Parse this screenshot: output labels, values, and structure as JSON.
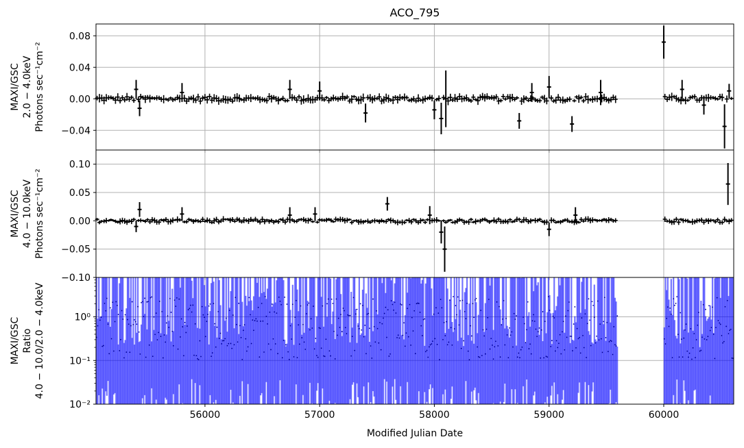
{
  "figure": {
    "title": "ACO_795",
    "xlabel": "Modified Julian Date"
  },
  "colors": {
    "axis": "#000000",
    "grid": "#b0b0b0",
    "point": "#000000",
    "ratio": "#0000ff",
    "ratio_point": "#00008b"
  },
  "chart_data": [
    {
      "type": "scatter",
      "panel": "top",
      "ylabel_lines": [
        "MAXI/GSC",
        "2.0 − 4.0keV",
        "Photons sec⁻¹cm⁻²"
      ],
      "xlim": [
        55050,
        60610
      ],
      "ylim": [
        -0.065,
        0.095
      ],
      "xticks": [
        56000,
        57000,
        58000,
        59000,
        60000
      ],
      "xtick_labels": [
        "56000",
        "57000",
        "58000",
        "59000",
        "60000"
      ],
      "yticks": [
        -0.04,
        0.0,
        0.04,
        0.08
      ],
      "ytick_labels": [
        "−0.04",
        "0.00",
        "0.04",
        "0.08"
      ],
      "grid": true,
      "segments": [
        [
          55050,
          59600
        ],
        [
          60000,
          60610
        ]
      ],
      "step": 20,
      "noise": 0.003,
      "base_err": 0.0045,
      "spikes": [
        {
          "x": 55400,
          "y": 0.012,
          "err": 0.012
        },
        {
          "x": 55430,
          "y": -0.012,
          "err": 0.01
        },
        {
          "x": 55800,
          "y": 0.008,
          "err": 0.012
        },
        {
          "x": 56740,
          "y": 0.012,
          "err": 0.012
        },
        {
          "x": 57000,
          "y": 0.01,
          "err": 0.012
        },
        {
          "x": 57400,
          "y": -0.018,
          "err": 0.012
        },
        {
          "x": 58000,
          "y": -0.014,
          "err": 0.012
        },
        {
          "x": 58060,
          "y": -0.025,
          "err": 0.02
        },
        {
          "x": 58100,
          "y": 0.0,
          "err": 0.036
        },
        {
          "x": 58740,
          "y": -0.028,
          "err": 0.01
        },
        {
          "x": 58850,
          "y": 0.008,
          "err": 0.012
        },
        {
          "x": 59000,
          "y": 0.015,
          "err": 0.014
        },
        {
          "x": 59200,
          "y": -0.032,
          "err": 0.01
        },
        {
          "x": 59450,
          "y": 0.008,
          "err": 0.016
        },
        {
          "x": 60000,
          "y": 0.072,
          "err": 0.021
        },
        {
          "x": 60160,
          "y": 0.012,
          "err": 0.012
        },
        {
          "x": 60350,
          "y": -0.008,
          "err": 0.012
        },
        {
          "x": 60530,
          "y": -0.035,
          "err": 0.028
        },
        {
          "x": 60570,
          "y": 0.01,
          "err": 0.009
        }
      ]
    },
    {
      "type": "scatter",
      "panel": "middle",
      "ylabel_lines": [
        "MAXI/GSC",
        "4.0 − 10.0keV",
        "Photons sec⁻¹cm⁻²"
      ],
      "xlim": [
        55050,
        60610
      ],
      "ylim": [
        -0.1,
        0.125
      ],
      "xticks": [
        56000,
        57000,
        58000,
        59000,
        60000
      ],
      "xtick_labels": [
        "56000",
        "57000",
        "58000",
        "59000",
        "60000"
      ],
      "yticks": [
        -0.1,
        -0.05,
        0.0,
        0.05,
        0.1
      ],
      "ytick_labels": [
        "−0.10",
        "−0.05",
        "0.00",
        "0.05",
        "0.10"
      ],
      "grid": true,
      "segments": [
        [
          55050,
          59600
        ],
        [
          60000,
          60610
        ]
      ],
      "step": 20,
      "noise": 0.003,
      "base_err": 0.0045,
      "spikes": [
        {
          "x": 55400,
          "y": -0.01,
          "err": 0.01
        },
        {
          "x": 55430,
          "y": 0.02,
          "err": 0.013
        },
        {
          "x": 55800,
          "y": 0.012,
          "err": 0.012
        },
        {
          "x": 56740,
          "y": 0.01,
          "err": 0.014
        },
        {
          "x": 56960,
          "y": 0.012,
          "err": 0.012
        },
        {
          "x": 57590,
          "y": 0.03,
          "err": 0.012
        },
        {
          "x": 57960,
          "y": 0.01,
          "err": 0.016
        },
        {
          "x": 58060,
          "y": -0.02,
          "err": 0.02
        },
        {
          "x": 58090,
          "y": -0.05,
          "err": 0.04
        },
        {
          "x": 59000,
          "y": -0.015,
          "err": 0.012
        },
        {
          "x": 59230,
          "y": 0.01,
          "err": 0.014
        },
        {
          "x": 60560,
          "y": 0.065,
          "err": 0.037
        }
      ]
    },
    {
      "type": "scatter",
      "panel": "bottom",
      "scale": "log",
      "ylabel_lines": [
        "MAXI/GSC",
        "Ratio",
        "4.0 − 10.0/2.0 − 4.0keV"
      ],
      "xlim": [
        55050,
        60610
      ],
      "ylim": [
        0.01,
        8
      ],
      "xticks": [
        56000,
        57000,
        58000,
        59000,
        60000
      ],
      "xtick_labels": [
        "56000",
        "57000",
        "58000",
        "59000",
        "60000"
      ],
      "yticks": [
        0.01,
        0.1,
        1
      ],
      "ytick_labels": [
        "10⁻²",
        "10⁻¹",
        "10⁰"
      ],
      "grid": true,
      "segments": [
        [
          55050,
          59600
        ],
        [
          60000,
          60610
        ]
      ],
      "step": 20
    }
  ]
}
